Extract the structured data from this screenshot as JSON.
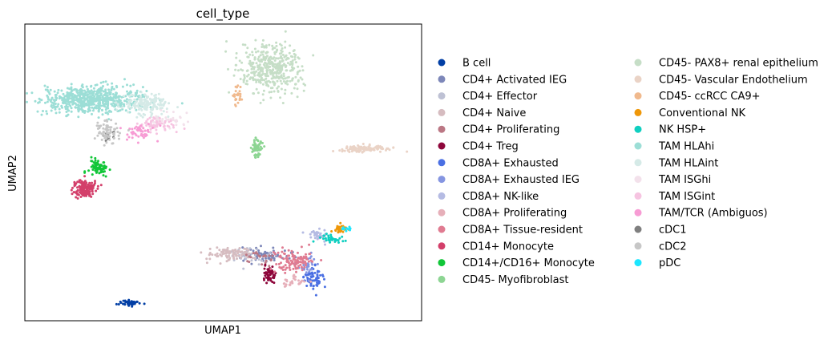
{
  "chart_data": {
    "type": "scatter",
    "title": "cell_type",
    "xlabel": "UMAP1",
    "ylabel": "UMAP2",
    "xlim": [
      0,
      100
    ],
    "ylim": [
      0,
      100
    ],
    "legend_position": "right, two columns",
    "grid": false,
    "series": [
      {
        "name": "B cell",
        "color": "#023fa5",
        "clusters": [
          {
            "x": 26.5,
            "y": 6.0,
            "sx": 1.6,
            "sy": 0.6,
            "n": 50
          }
        ]
      },
      {
        "name": "CD4+ Activated IEG",
        "color": "#7d87b9",
        "clusters": [
          {
            "x": 60.5,
            "y": 22.5,
            "sx": 3.5,
            "sy": 1.5,
            "n": 70
          }
        ]
      },
      {
        "name": "CD4+ Effector",
        "color": "#bec1d4",
        "clusters": [
          {
            "x": 57.0,
            "y": 22.0,
            "sx": 4.0,
            "sy": 1.8,
            "n": 45
          }
        ]
      },
      {
        "name": "CD4+ Naive",
        "color": "#d6bcc0",
        "clusters": [
          {
            "x": 52.0,
            "y": 22.5,
            "sx": 4.0,
            "sy": 1.3,
            "n": 90
          }
        ]
      },
      {
        "name": "CD4+ Proliferating",
        "color": "#bb7784",
        "clusters": [
          {
            "x": 59.0,
            "y": 21.0,
            "sx": 2.5,
            "sy": 1.5,
            "n": 25
          }
        ]
      },
      {
        "name": "CD4+ Treg",
        "color": "#8e063b",
        "clusters": [
          {
            "x": 61.5,
            "y": 15.5,
            "sx": 1.0,
            "sy": 1.8,
            "n": 55
          }
        ]
      },
      {
        "name": "CD8A+ Exhausted",
        "color": "#4a6fe3",
        "clusters": [
          {
            "x": 72.5,
            "y": 14.5,
            "sx": 1.6,
            "sy": 2.2,
            "n": 75
          }
        ]
      },
      {
        "name": "CD8A+ Exhausted IEG",
        "color": "#8595e1",
        "clusters": [
          {
            "x": 71.0,
            "y": 19.0,
            "sx": 1.6,
            "sy": 2.2,
            "n": 30
          }
        ]
      },
      {
        "name": "CD8A+ NK-like",
        "color": "#b5bbe3",
        "clusters": [
          {
            "x": 74.0,
            "y": 29.0,
            "sx": 1.4,
            "sy": 1.3,
            "n": 35
          }
        ]
      },
      {
        "name": "CD8A+ Proliferating",
        "color": "#e6afb9",
        "clusters": [
          {
            "x": 68.0,
            "y": 13.0,
            "sx": 2.0,
            "sy": 1.2,
            "n": 30
          }
        ]
      },
      {
        "name": "CD8A+ Tissue-resident",
        "color": "#e07b91",
        "clusters": [
          {
            "x": 67.5,
            "y": 20.5,
            "sx": 2.8,
            "sy": 2.5,
            "n": 110
          }
        ]
      },
      {
        "name": "CD14+ Monocyte",
        "color": "#d33f6a",
        "clusters": [
          {
            "x": 15.0,
            "y": 44.5,
            "sx": 1.8,
            "sy": 1.8,
            "n": 140
          }
        ]
      },
      {
        "name": "CD14+/CD16+ Monocyte",
        "color": "#11c638",
        "clusters": [
          {
            "x": 18.5,
            "y": 51.5,
            "sx": 1.6,
            "sy": 1.8,
            "n": 70
          }
        ]
      },
      {
        "name": "CD45- Myofibroblast",
        "color": "#8dd593",
        "clusters": [
          {
            "x": 58.5,
            "y": 58.5,
            "sx": 0.8,
            "sy": 2.4,
            "n": 55
          }
        ]
      },
      {
        "name": "CD45- PAX8+ renal epithelium",
        "color": "#c6dec7",
        "clusters": [
          {
            "x": 62.0,
            "y": 85.0,
            "sx": 5.0,
            "sy": 5.0,
            "n": 420
          }
        ]
      },
      {
        "name": "CD45- Vascular Endothelium",
        "color": "#ead3c6",
        "clusters": [
          {
            "x": 86.0,
            "y": 58.0,
            "sx": 5.0,
            "sy": 0.6,
            "n": 120
          }
        ]
      },
      {
        "name": "CD45- ccRCC CA9+",
        "color": "#f0b98d",
        "clusters": [
          {
            "x": 53.5,
            "y": 76.0,
            "sx": 0.7,
            "sy": 2.0,
            "n": 25
          }
        ]
      },
      {
        "name": "Conventional NK",
        "color": "#ef9708",
        "clusters": [
          {
            "x": 79.5,
            "y": 31.0,
            "sx": 1.0,
            "sy": 0.8,
            "n": 35
          }
        ]
      },
      {
        "name": "NK HSP+",
        "color": "#0fcfc0",
        "clusters": [
          {
            "x": 77.0,
            "y": 27.5,
            "sx": 1.8,
            "sy": 1.0,
            "n": 35
          }
        ]
      },
      {
        "name": "TAM HLAhi",
        "color": "#9cded6",
        "clusters": [
          {
            "x": 17.0,
            "y": 74.5,
            "sx": 8.0,
            "sy": 2.6,
            "n": 650
          }
        ]
      },
      {
        "name": "TAM HLAint",
        "color": "#d5eae7",
        "clusters": [
          {
            "x": 31.0,
            "y": 73.0,
            "sx": 4.0,
            "sy": 2.2,
            "n": 160
          }
        ]
      },
      {
        "name": "TAM ISGhi",
        "color": "#f3e1eb",
        "clusters": [
          {
            "x": 36.0,
            "y": 68.0,
            "sx": 3.0,
            "sy": 1.6,
            "n": 40
          }
        ]
      },
      {
        "name": "TAM ISGint",
        "color": "#f6c4e1",
        "clusters": [
          {
            "x": 33.0,
            "y": 66.0,
            "sx": 3.0,
            "sy": 1.6,
            "n": 60
          }
        ]
      },
      {
        "name": "TAM/TCR (Ambiguos)",
        "color": "#f79cd4",
        "clusters": [
          {
            "x": 29.0,
            "y": 64.0,
            "sx": 2.5,
            "sy": 1.8,
            "n": 50
          }
        ]
      },
      {
        "name": "cDC1",
        "color": "#7f7f7f",
        "clusters": [
          {
            "x": 21.0,
            "y": 62.0,
            "sx": 1.2,
            "sy": 1.2,
            "n": 12
          }
        ]
      },
      {
        "name": "cDC2",
        "color": "#c7c7c7",
        "clusters": [
          {
            "x": 21.0,
            "y": 63.5,
            "sx": 2.0,
            "sy": 2.2,
            "n": 70
          }
        ]
      },
      {
        "name": "pDC",
        "color": "#1ce6ff",
        "clusters": [
          {
            "x": 81.0,
            "y": 31.0,
            "sx": 0.8,
            "sy": 0.6,
            "n": 10
          }
        ]
      }
    ]
  }
}
